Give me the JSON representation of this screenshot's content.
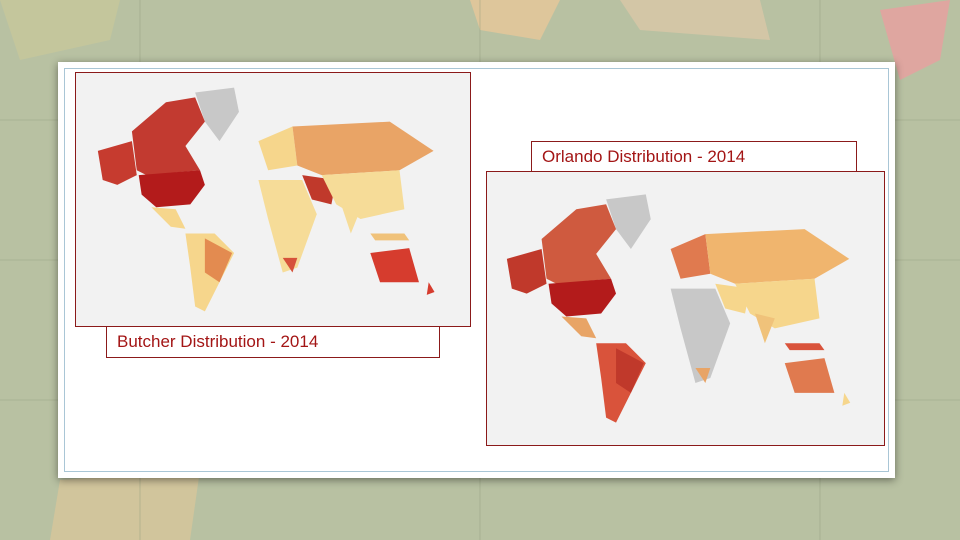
{
  "captions": {
    "left": "Butcher Distribution - 2014",
    "right": "Orlando Distribution - 2014"
  }
}
